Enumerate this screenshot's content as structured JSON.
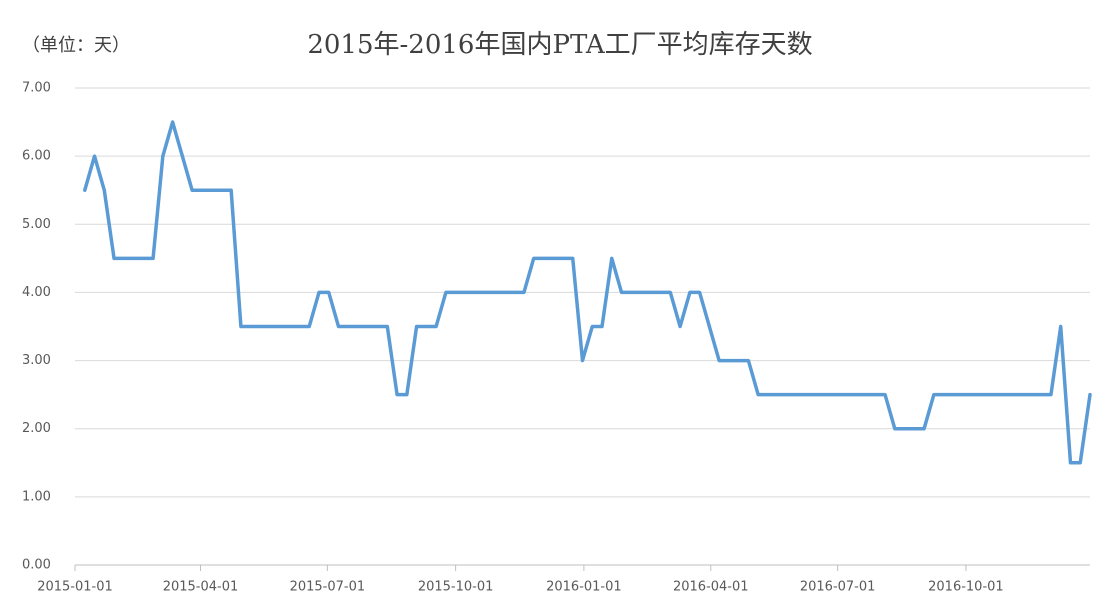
{
  "chart_data": {
    "type": "line",
    "title": "2015年-2016年国内PTA工厂平均库存天数",
    "subtitle": "（单位：天）",
    "color": "#5b9bd5",
    "grid": true,
    "x": [
      "2015-01-08",
      "2015-01-15",
      "2015-01-22",
      "2015-01-29",
      "2015-02-05",
      "2015-02-12",
      "2015-02-19",
      "2015-02-26",
      "2015-03-05",
      "2015-03-12",
      "2015-03-19",
      "2015-03-26",
      "2015-04-02",
      "2015-04-09",
      "2015-04-16",
      "2015-04-23",
      "2015-04-30",
      "2015-05-07",
      "2015-05-14",
      "2015-05-21",
      "2015-05-28",
      "2015-06-04",
      "2015-06-11",
      "2015-06-18",
      "2015-06-25",
      "2015-07-02",
      "2015-07-09",
      "2015-07-16",
      "2015-07-23",
      "2015-07-30",
      "2015-08-06",
      "2015-08-13",
      "2015-08-20",
      "2015-08-27",
      "2015-09-03",
      "2015-09-10",
      "2015-09-17",
      "2015-09-24",
      "2015-10-01",
      "2015-10-08",
      "2015-10-15",
      "2015-10-22",
      "2015-10-29",
      "2015-11-05",
      "2015-11-12",
      "2015-11-19",
      "2015-11-26",
      "2015-12-03",
      "2015-12-10",
      "2015-12-17",
      "2015-12-24",
      "2015-12-31",
      "2016-01-07",
      "2016-01-14",
      "2016-01-21",
      "2016-01-28",
      "2016-02-04",
      "2016-02-11",
      "2016-02-18",
      "2016-02-25",
      "2016-03-03",
      "2016-03-10",
      "2016-03-17",
      "2016-03-24",
      "2016-03-31",
      "2016-04-07",
      "2016-04-14",
      "2016-04-21",
      "2016-04-28",
      "2016-05-05",
      "2016-05-12",
      "2016-05-19",
      "2016-05-26",
      "2016-06-02",
      "2016-06-09",
      "2016-06-16",
      "2016-06-23",
      "2016-06-30",
      "2016-07-07",
      "2016-07-14",
      "2016-07-21",
      "2016-07-28",
      "2016-08-04",
      "2016-08-11",
      "2016-08-18",
      "2016-08-25",
      "2016-09-01",
      "2016-09-08",
      "2016-09-15",
      "2016-09-22",
      "2016-09-29",
      "2016-10-06",
      "2016-10-13",
      "2016-10-20",
      "2016-10-27",
      "2016-11-03",
      "2016-11-10",
      "2016-11-17",
      "2016-11-24",
      "2016-12-01",
      "2016-12-08",
      "2016-12-15",
      "2016-12-22",
      "2016-12-29"
    ],
    "values": [
      5.5,
      6.0,
      5.5,
      4.5,
      4.5,
      4.5,
      4.5,
      4.5,
      6.0,
      6.5,
      6.0,
      5.5,
      5.5,
      5.5,
      5.5,
      5.5,
      3.5,
      3.5,
      3.5,
      3.5,
      3.5,
      3.5,
      3.5,
      3.5,
      4.0,
      4.0,
      3.5,
      3.5,
      3.5,
      3.5,
      3.5,
      3.5,
      2.5,
      2.5,
      3.5,
      3.5,
      3.5,
      4.0,
      4.0,
      4.0,
      4.0,
      4.0,
      4.0,
      4.0,
      4.0,
      4.0,
      4.5,
      4.5,
      4.5,
      4.5,
      4.5,
      3.0,
      3.5,
      3.5,
      4.5,
      4.0,
      4.0,
      4.0,
      4.0,
      4.0,
      4.0,
      3.5,
      4.0,
      4.0,
      3.5,
      3.0,
      3.0,
      3.0,
      3.0,
      2.5,
      2.5,
      2.5,
      2.5,
      2.5,
      2.5,
      2.5,
      2.5,
      2.5,
      2.5,
      2.5,
      2.5,
      2.5,
      2.5,
      2.0,
      2.0,
      2.0,
      2.0,
      2.5,
      2.5,
      2.5,
      2.5,
      2.5,
      2.5,
      2.5,
      2.5,
      2.5,
      2.5,
      2.5,
      2.5,
      2.5,
      3.5,
      1.5,
      1.5,
      2.5
    ],
    "xlim": [
      "2015-01-01",
      "2016-12-29"
    ],
    "xticks": [
      "2015-01-01",
      "2015-04-01",
      "2015-07-01",
      "2015-10-01",
      "2016-01-01",
      "2016-04-01",
      "2016-07-01",
      "2016-10-01"
    ],
    "ylim": [
      0,
      7
    ],
    "yticks": [
      {
        "value": 0,
        "label": "0.00"
      },
      {
        "value": 1,
        "label": "1.00"
      },
      {
        "value": 2,
        "label": "2.00"
      },
      {
        "value": 3,
        "label": "3.00"
      },
      {
        "value": 4,
        "label": "4.00"
      },
      {
        "value": 5,
        "label": "5.00"
      },
      {
        "value": 6,
        "label": "6.00"
      },
      {
        "value": 7,
        "label": "7.00"
      }
    ]
  }
}
